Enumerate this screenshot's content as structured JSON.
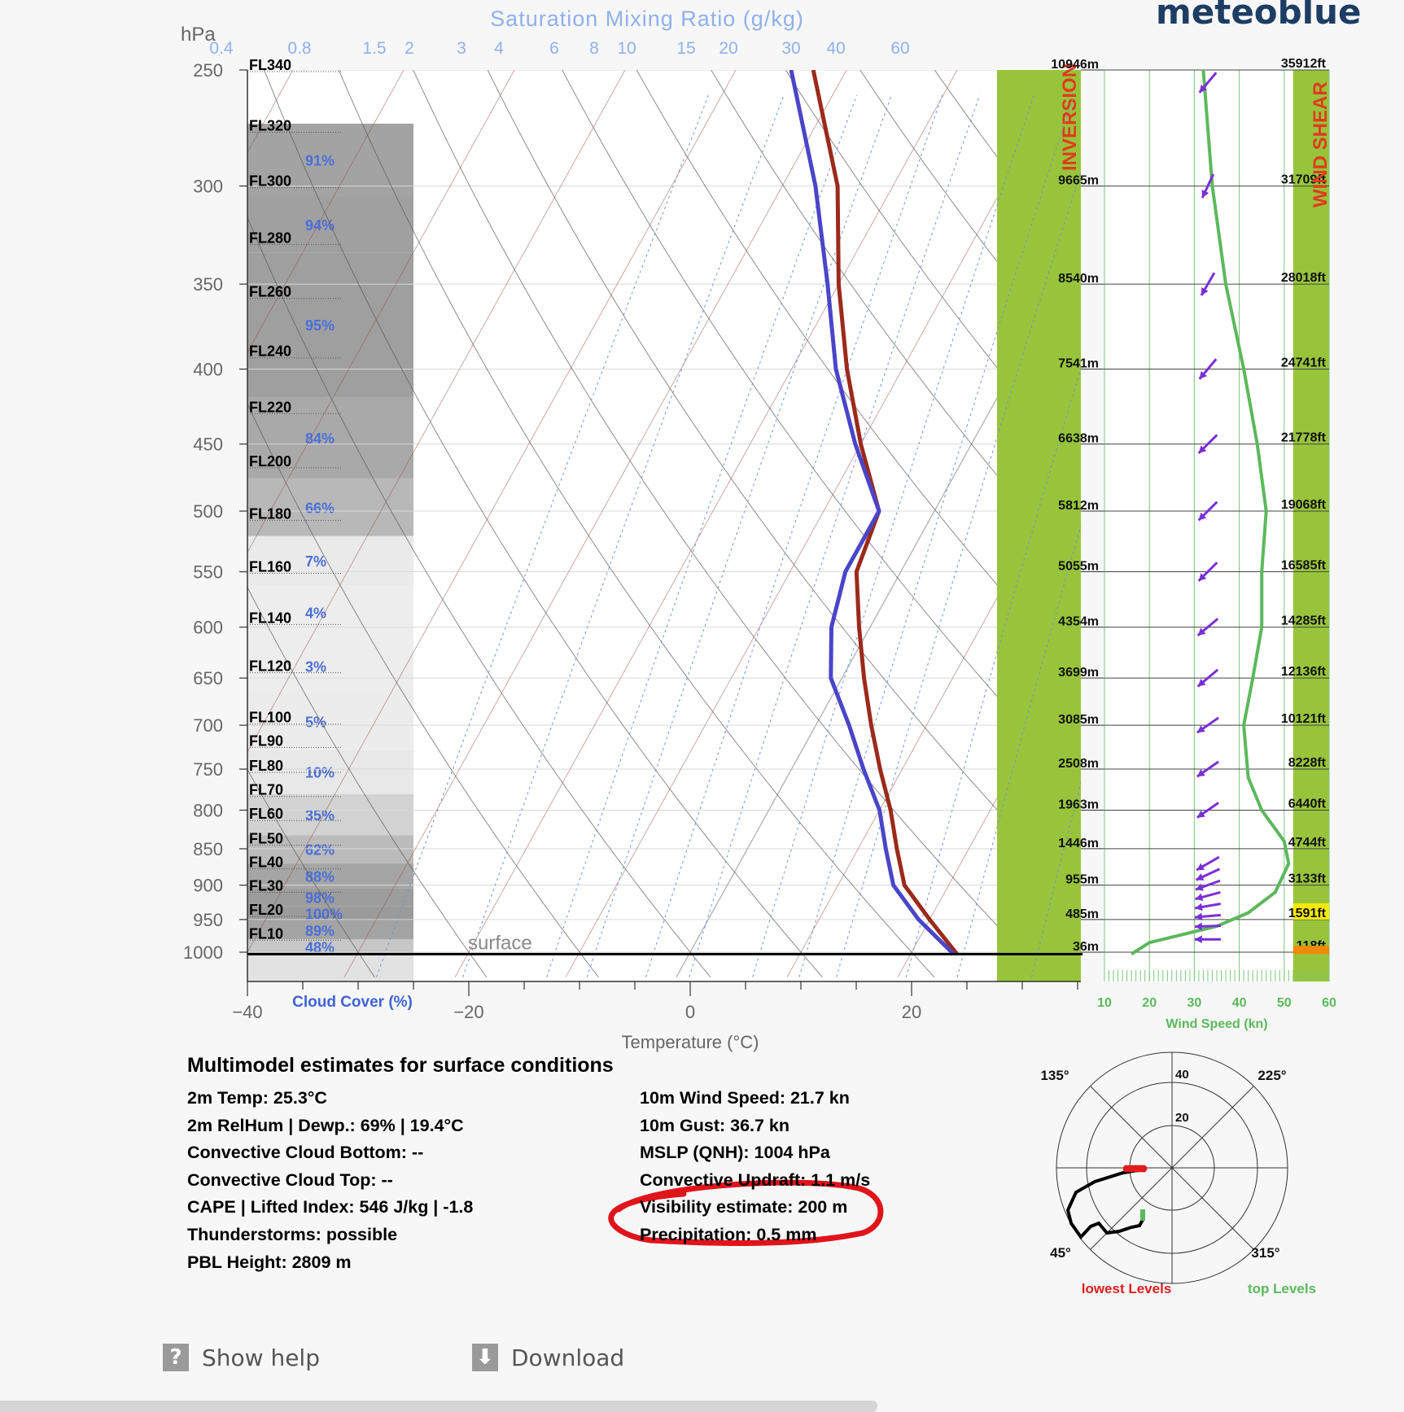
{
  "brand": "meteoblue",
  "chart_data": {
    "type": "line",
    "title": "Saturation Mixing Ratio (g/kg)",
    "xlabel": "Temperature (°C)",
    "ylabel": "hPa",
    "x_ticks": [
      "−40",
      "−20",
      "0",
      "20"
    ],
    "xlim": [
      -40,
      35
    ],
    "ylim": [
      250,
      1040
    ],
    "y_scale": "log",
    "y_ticks": [
      "250",
      "300",
      "350",
      "400",
      "450",
      "500",
      "550",
      "600",
      "650",
      "700",
      "750",
      "800",
      "850",
      "900",
      "950",
      "1000"
    ],
    "mixing_ratio_labels": [
      "0.4",
      "0.8",
      "1.5",
      "2",
      "3",
      "4",
      "6",
      "8",
      "10",
      "15",
      "20",
      "30",
      "40",
      "60"
    ],
    "mixing_ratio_values": [
      0.4,
      0.8,
      1.5,
      2,
      3,
      4,
      6,
      8,
      10,
      15,
      20,
      30,
      40,
      60
    ],
    "surface_label": "surface",
    "surface_pressure": 1003,
    "cloud_cover_label": "Cloud Cover (%)",
    "cloud_cover": [
      {
        "p": 1003,
        "top": 980,
        "pct": "48%",
        "cover": 48
      },
      {
        "p": 980,
        "top": 952,
        "pct": "89%",
        "cover": 89
      },
      {
        "p": 952,
        "top": 930,
        "pct": "100%",
        "cover": 100
      },
      {
        "p": 930,
        "top": 905,
        "pct": "98%",
        "cover": 98
      },
      {
        "p": 905,
        "top": 870,
        "pct": "88%",
        "cover": 88
      },
      {
        "p": 870,
        "top": 832,
        "pct": "62%",
        "cover": 62
      },
      {
        "p": 832,
        "top": 780,
        "pct": "35%",
        "cover": 35
      },
      {
        "p": 780,
        "top": 728,
        "pct": "10%",
        "cover": 10
      },
      {
        "p": 728,
        "top": 665,
        "pct": "5%",
        "cover": 5
      },
      {
        "p": 665,
        "top": 612,
        "pct": "3%",
        "cover": 3
      },
      {
        "p": 612,
        "top": 562,
        "pct": "4%",
        "cover": 4
      },
      {
        "p": 562,
        "top": 520,
        "pct": "7%",
        "cover": 7
      },
      {
        "p": 520,
        "top": 475,
        "pct": "66%",
        "cover": 66
      },
      {
        "p": 475,
        "top": 418,
        "pct": "84%",
        "cover": 84
      },
      {
        "p": 418,
        "top": 333,
        "pct": "95%",
        "cover": 95
      },
      {
        "p": 333,
        "top": 305,
        "pct": "94%",
        "cover": 94
      },
      {
        "p": 305,
        "top": 272,
        "pct": "91%",
        "cover": 91
      }
    ],
    "flight_levels": [
      {
        "label": "FL340",
        "p": 250
      },
      {
        "label": "FL320",
        "p": 275
      },
      {
        "label": "FL300",
        "p": 300
      },
      {
        "label": "FL280",
        "p": 328
      },
      {
        "label": "FL260",
        "p": 357
      },
      {
        "label": "FL240",
        "p": 392
      },
      {
        "label": "FL220",
        "p": 428
      },
      {
        "label": "FL200",
        "p": 466
      },
      {
        "label": "FL180",
        "p": 506
      },
      {
        "label": "FL160",
        "p": 550
      },
      {
        "label": "FL140",
        "p": 596
      },
      {
        "label": "FL120",
        "p": 643
      },
      {
        "label": "FL100",
        "p": 697
      },
      {
        "label": "FL90",
        "p": 723
      },
      {
        "label": "FL80",
        "p": 752
      },
      {
        "label": "FL70",
        "p": 781
      },
      {
        "label": "FL60",
        "p": 811
      },
      {
        "label": "FL50",
        "p": 843
      },
      {
        "label": "FL40",
        "p": 875
      },
      {
        "label": "FL30",
        "p": 908
      },
      {
        "label": "FL20",
        "p": 943
      },
      {
        "label": "FL10",
        "p": 979
      }
    ],
    "series": [
      {
        "color": "#9b2a1b",
        "points": [
          [
            24.2,
            1003
          ],
          [
            20,
            950
          ],
          [
            16,
            900
          ],
          [
            13.5,
            850
          ],
          [
            11,
            800
          ],
          [
            8,
            750
          ],
          [
            5,
            700
          ],
          [
            2,
            650
          ],
          [
            -1,
            600
          ],
          [
            -4,
            550
          ],
          [
            -5,
            500
          ],
          [
            -10,
            450
          ],
          [
            -15,
            400
          ],
          [
            -20,
            350
          ],
          [
            -25,
            300
          ],
          [
            -33,
            250
          ]
        ]
      },
      {
        "color": "#4a45c8",
        "points": [
          [
            23.9,
            1003
          ],
          [
            19,
            950
          ],
          [
            15,
            900
          ],
          [
            12.5,
            850
          ],
          [
            10,
            800
          ],
          [
            6.5,
            750
          ],
          [
            3,
            700
          ],
          [
            -1,
            650
          ],
          [
            -3.5,
            600
          ],
          [
            -5,
            550
          ],
          [
            -5,
            500
          ],
          [
            -10.5,
            450
          ],
          [
            -16,
            400
          ],
          [
            -21,
            350
          ],
          [
            -27,
            300
          ],
          [
            -35,
            250
          ]
        ]
      }
    ],
    "height_labels_m": [
      {
        "p": 250,
        "label": "10946m"
      },
      {
        "p": 300,
        "label": "9665m"
      },
      {
        "p": 350,
        "label": "8540m"
      },
      {
        "p": 400,
        "label": "7541m"
      },
      {
        "p": 450,
        "label": "6638m"
      },
      {
        "p": 500,
        "label": "5812m"
      },
      {
        "p": 550,
        "label": "5055m"
      },
      {
        "p": 600,
        "label": "4354m"
      },
      {
        "p": 650,
        "label": "3699m"
      },
      {
        "p": 700,
        "label": "3085m"
      },
      {
        "p": 750,
        "label": "2508m"
      },
      {
        "p": 800,
        "label": "1963m"
      },
      {
        "p": 850,
        "label": "1446m"
      },
      {
        "p": 900,
        "label": "955m"
      },
      {
        "p": 950,
        "label": "485m"
      },
      {
        "p": 1000,
        "label": "36m"
      }
    ],
    "inversion_label": "INVERSION",
    "wind": {
      "xlabel": "Wind Speed (kn)",
      "x_ticks": [
        "10",
        "20",
        "30",
        "40",
        "50",
        "60"
      ],
      "xlim": [
        10,
        60
      ],
      "shear_label": "WIND SHEAR",
      "heights_ft": [
        {
          "p": 250,
          "label": "35912ft"
        },
        {
          "p": 300,
          "label": "31709ft"
        },
        {
          "p": 350,
          "label": "28018ft"
        },
        {
          "p": 400,
          "label": "24741ft"
        },
        {
          "p": 450,
          "label": "21778ft"
        },
        {
          "p": 500,
          "label": "19068ft"
        },
        {
          "p": 550,
          "label": "16585ft"
        },
        {
          "p": 600,
          "label": "14285ft"
        },
        {
          "p": 650,
          "label": "12136ft"
        },
        {
          "p": 700,
          "label": "10121ft"
        },
        {
          "p": 750,
          "label": "8228ft"
        },
        {
          "p": 800,
          "label": "6440ft"
        },
        {
          "p": 850,
          "label": "4744ft"
        },
        {
          "p": 900,
          "label": "3133ft"
        },
        {
          "p": 950,
          "label": "1591ft",
          "highlight": "#f2ea00"
        },
        {
          "p": 1000,
          "label": "118ft"
        }
      ],
      "shear_alert_color": "#f08a00",
      "speed_profile": [
        [
          16,
          1003
        ],
        [
          20,
          985
        ],
        [
          35,
          960
        ],
        [
          42,
          940
        ],
        [
          48,
          910
        ],
        [
          51,
          870
        ],
        [
          50,
          840
        ],
        [
          45,
          800
        ],
        [
          42,
          760
        ],
        [
          41,
          700
        ],
        [
          43,
          650
        ],
        [
          45,
          600
        ],
        [
          45,
          550
        ],
        [
          46,
          500
        ],
        [
          44,
          450
        ],
        [
          41,
          400
        ],
        [
          37,
          350
        ],
        [
          34,
          300
        ],
        [
          32,
          250
        ]
      ],
      "arrows": [
        {
          "p": 255,
          "dir": 40
        },
        {
          "p": 300,
          "dir": 25
        },
        {
          "p": 350,
          "dir": 30
        },
        {
          "p": 400,
          "dir": 40
        },
        {
          "p": 450,
          "dir": 45
        },
        {
          "p": 500,
          "dir": 45
        },
        {
          "p": 550,
          "dir": 45
        },
        {
          "p": 600,
          "dir": 50
        },
        {
          "p": 650,
          "dir": 50
        },
        {
          "p": 700,
          "dir": 55
        },
        {
          "p": 750,
          "dir": 55
        },
        {
          "p": 800,
          "dir": 55
        },
        {
          "p": 870,
          "dir": 60
        },
        {
          "p": 885,
          "dir": 65
        },
        {
          "p": 900,
          "dir": 70
        },
        {
          "p": 915,
          "dir": 75
        },
        {
          "p": 930,
          "dir": 80
        },
        {
          "p": 945,
          "dir": 85
        },
        {
          "p": 960,
          "dir": 88
        },
        {
          "p": 980,
          "dir": 90
        }
      ]
    },
    "hodograph": {
      "labels": [
        "135°",
        "225°",
        "45°",
        "315°"
      ],
      "ring_labels": [
        "40",
        "20"
      ],
      "legend_low": "lowest Levels",
      "legend_high": "top Levels",
      "low_color": "#e01e1e",
      "high_color": "#5cb85c"
    }
  },
  "summary": {
    "title": "Multimodel estimates for surface conditions",
    "left": [
      "2m Temp:  25.3°C",
      "2m RelHum | Dewp.: 69% | 19.4°C",
      "Convective Cloud Bottom: --",
      "Convective Cloud Top: --",
      "CAPE | Lifted Index: 546 J/kg | -1.8",
      "Thunderstorms: possible",
      "PBL Height: 2809 m"
    ],
    "right": [
      "10m Wind Speed:  21.7 kn",
      "10m Gust:  36.7 kn",
      "MSLP (QNH):  1004 hPa",
      "Convective Updraft:  1.1 m/s",
      "Visibility estimate:  200 m",
      "Precipitation:  0.5 mm"
    ],
    "annotation_color": "#e0141b"
  },
  "footer": {
    "help_label": "Show help",
    "help_icon": "?",
    "download_label": "Download",
    "download_icon": "⬇"
  }
}
